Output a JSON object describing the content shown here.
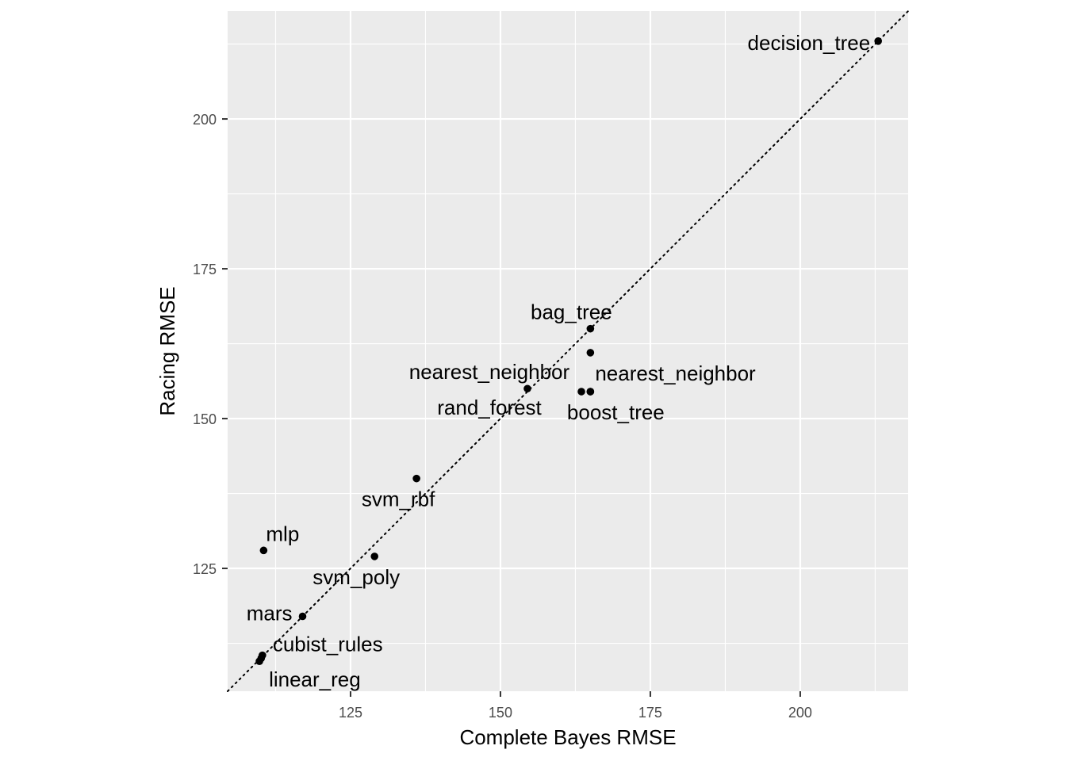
{
  "chart_data": {
    "type": "scatter",
    "xlabel": "Complete Bayes RMSE",
    "ylabel": "Racing RMSE",
    "xlim": [
      104.5,
      218
    ],
    "ylim": [
      104.5,
      218
    ],
    "x_ticks": [
      125,
      150,
      175,
      200
    ],
    "y_ticks": [
      125,
      150,
      175,
      200
    ],
    "grid": true,
    "reference_line": {
      "type": "identity",
      "style": "dotted"
    },
    "points": [
      {
        "label": "decision_tree",
        "x": 213,
        "y": 213,
        "anchor": "end",
        "dx": -10,
        "dy": 11
      },
      {
        "label": "bag_tree",
        "x": 165,
        "y": 165,
        "anchor": "middle",
        "dx": -24,
        "dy": -12
      },
      {
        "label": "",
        "x": 165,
        "y": 161,
        "anchor": "start",
        "dx": 0,
        "dy": 0
      },
      {
        "label": "nearest_neighbor",
        "x": 154.5,
        "y": 155,
        "anchor": "middle",
        "dx": -48,
        "dy": -12
      },
      {
        "label": "rand_forest",
        "x": 163.5,
        "y": 154.5,
        "anchor": "middle",
        "dx": -116,
        "dy": 29
      },
      {
        "label": "nearest_neighbor",
        "x": 165,
        "y": 154.5,
        "anchor": "start",
        "dx": 6,
        "dy": -14
      },
      {
        "label": "boost_tree",
        "x": 165,
        "y": 154.5,
        "anchor": "middle",
        "dx": 32,
        "dy": 35
      },
      {
        "label": "svm_rbf",
        "x": 136,
        "y": 140,
        "anchor": "middle",
        "dx": -23,
        "dy": 35
      },
      {
        "label": "mlp",
        "x": 110.5,
        "y": 128,
        "anchor": "middle",
        "dx": 24,
        "dy": -12
      },
      {
        "label": "svm_poly",
        "x": 129,
        "y": 127,
        "anchor": "middle",
        "dx": -23,
        "dy": 35
      },
      {
        "label": "mars",
        "x": 117,
        "y": 117,
        "anchor": "end",
        "dx": -13,
        "dy": 5
      },
      {
        "label": "cubist_rules",
        "x": 110.3,
        "y": 110.5,
        "anchor": "start",
        "dx": 13,
        "dy": -5
      },
      {
        "label": "",
        "x": 110.1,
        "y": 110,
        "anchor": "start",
        "dx": 0,
        "dy": 0
      },
      {
        "label": "linear_reg",
        "x": 109.8,
        "y": 109.5,
        "anchor": "start",
        "dx": 12,
        "dy": 32
      }
    ]
  }
}
